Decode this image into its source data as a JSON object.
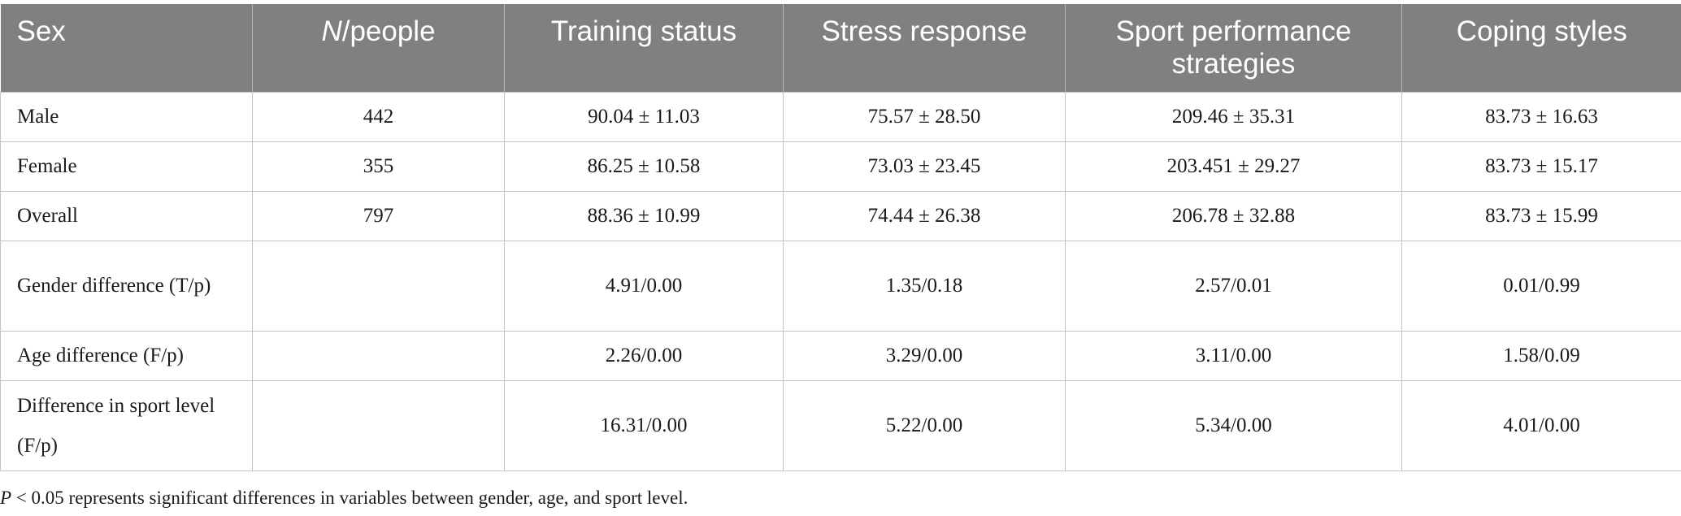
{
  "table": {
    "headers": [
      "Sex",
      "N",
      "/people",
      "Training status",
      "Stress response",
      "Sport performance strategies",
      "Coping styles"
    ],
    "rows": [
      {
        "label": "Male",
        "n": "442",
        "training": "90.04 ± 11.03",
        "stress": "75.57 ± 28.50",
        "sport": "209.46 ± 35.31",
        "coping": "83.73 ± 16.63"
      },
      {
        "label": "Female",
        "n": "355",
        "training": "86.25 ± 10.58",
        "stress": "73.03 ± 23.45",
        "sport": "203.451 ± 29.27",
        "coping": "83.73 ± 15.17"
      },
      {
        "label": "Overall",
        "n": "797",
        "training": "88.36 ± 10.99",
        "stress": "74.44 ± 26.38",
        "sport": "206.78 ± 32.88",
        "coping": "83.73 ± 15.99"
      },
      {
        "label": "Gender difference (T/p)",
        "n": "",
        "training": "4.91/0.00",
        "stress": "1.35/0.18",
        "sport": "2.57/0.01",
        "coping": "0.01/0.99"
      },
      {
        "label": "Age difference (F/p)",
        "n": "",
        "training": "2.26/0.00",
        "stress": "3.29/0.00",
        "sport": "3.11/0.00",
        "coping": "1.58/0.09"
      },
      {
        "label": "Difference in sport level (F/p)",
        "n": "",
        "training": "16.31/0.00",
        "stress": "5.22/0.00",
        "sport": "5.34/0.00",
        "coping": "4.01/0.00"
      }
    ]
  },
  "footnote": {
    "p": "P",
    "text": " < 0.05 represents significant differences in variables between gender, age, and sport level."
  }
}
